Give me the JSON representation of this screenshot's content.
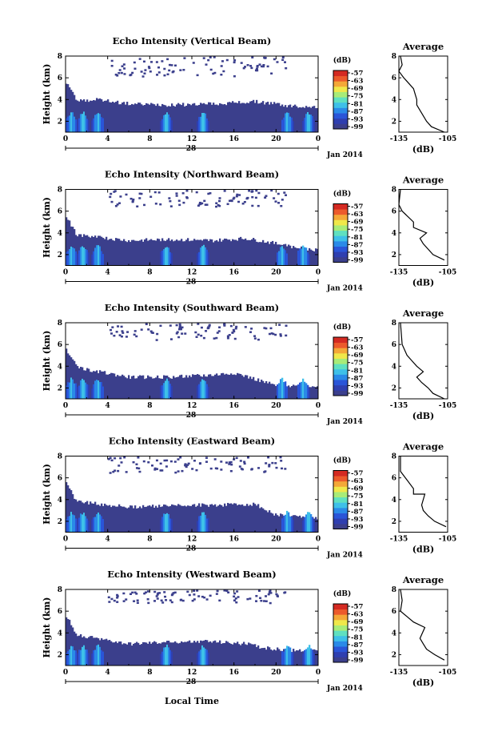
{
  "figure": {
    "common_xlabel": "Local Time",
    "date_label": "Jan 2014",
    "day_label": "28",
    "xticks": [
      "0",
      "4",
      "8",
      "12",
      "16",
      "20",
      "0"
    ],
    "yticks": [
      "2",
      "4",
      "6",
      "8"
    ],
    "ylabel": "Height (km)",
    "cbar_unit": "(dB)",
    "cbar_ticks": [
      "-57",
      "-63",
      "-69",
      "-75",
      "-81",
      "-87",
      "-93",
      "-99"
    ],
    "avg_title": "Average",
    "avg_xticks": [
      "-135",
      "-105"
    ],
    "avg_xlabel": "(dB)",
    "colors": {
      "colormap": [
        "#3b3f8c",
        "#2f3fb0",
        "#2a55d8",
        "#2a8ae8",
        "#3ec0e8",
        "#5fe0c0",
        "#a8ec78",
        "#f0e84a",
        "#f4a838",
        "#ec5a2c",
        "#d42a22"
      ],
      "no_data": "#ffffff"
    }
  },
  "panels": [
    {
      "title": "Echo Intensity (Vertical Beam)"
    },
    {
      "title": "Echo Intensity (Northward Beam)"
    },
    {
      "title": "Echo Intensity (Southward Beam)"
    },
    {
      "title": "Echo Intensity (Eastward Beam)"
    },
    {
      "title": "Echo Intensity (Westward Beam)"
    }
  ],
  "chart_data": [
    {
      "type": "heatmap",
      "beam": "Vertical",
      "title": "Echo Intensity (Vertical Beam)",
      "xlabel": "Local Time",
      "ylabel": "Height (km)",
      "x_range_hours": [
        0,
        24
      ],
      "ylim_km": [
        1,
        8
      ],
      "color_range_dB": [
        -99,
        -57
      ],
      "xticks": [
        "0",
        "4",
        "8",
        "12",
        "16",
        "20",
        "0"
      ],
      "echo_top_km": [
        [
          0,
          5.6
        ],
        [
          1,
          3.9
        ],
        [
          3,
          4.0
        ],
        [
          6,
          3.6
        ],
        [
          10,
          3.5
        ],
        [
          14,
          3.6
        ],
        [
          18,
          3.8
        ],
        [
          20,
          3.6
        ],
        [
          21,
          3.4
        ],
        [
          24,
          3.3
        ]
      ],
      "sparse_upper_cloud_km": [
        6.0,
        8.0
      ],
      "intense_streaks_hours": [
        0.5,
        1.6,
        3.0,
        9.5,
        13.0,
        21.0,
        23.0
      ],
      "average_profile": {
        "x_dB": [
          -107,
          -115,
          -118,
          -120,
          -124,
          -124,
          -126,
          -132,
          -135,
          -133,
          -134
        ],
        "height_km": [
          1.0,
          1.5,
          2.0,
          2.5,
          3.5,
          4.0,
          5.0,
          6.0,
          6.6,
          7.2,
          8.0
        ],
        "xlim": [
          -135,
          -105
        ],
        "ylim": [
          1,
          8
        ]
      }
    },
    {
      "type": "heatmap",
      "beam": "Northward",
      "title": "Echo Intensity (Northward Beam)",
      "xlabel": "Local Time",
      "ylabel": "Height (km)",
      "x_range_hours": [
        0,
        24
      ],
      "ylim_km": [
        1,
        8
      ],
      "color_range_dB": [
        -99,
        -57
      ],
      "xticks": [
        "0",
        "4",
        "8",
        "12",
        "16",
        "20",
        "0"
      ],
      "echo_top_km": [
        [
          0,
          5.5
        ],
        [
          1,
          3.8
        ],
        [
          3,
          3.6
        ],
        [
          6,
          3.3
        ],
        [
          10,
          3.4
        ],
        [
          14,
          3.3
        ],
        [
          17,
          3.5
        ],
        [
          19,
          3.2
        ],
        [
          21,
          2.8
        ],
        [
          24,
          2.4
        ]
      ],
      "sparse_upper_cloud_km": [
        6.5,
        8.0
      ],
      "intense_streaks_hours": [
        0.5,
        1.6,
        3.0,
        9.5,
        13.0,
        20.5,
        22.5
      ],
      "average_profile": {
        "x_dB": [
          -107,
          -114,
          -117,
          -120,
          -122,
          -118,
          -126,
          -126,
          -133,
          -135,
          -134
        ],
        "height_km": [
          1.5,
          2.0,
          2.5,
          3.0,
          3.5,
          4.0,
          4.5,
          5.0,
          6.0,
          6.6,
          8.0
        ],
        "xlim": [
          -135,
          -105
        ],
        "ylim": [
          1,
          8
        ]
      }
    },
    {
      "type": "heatmap",
      "beam": "Southward",
      "title": "Echo Intensity (Southward Beam)",
      "xlabel": "Local Time",
      "ylabel": "Height (km)",
      "x_range_hours": [
        0,
        24
      ],
      "ylim_km": [
        1,
        8
      ],
      "color_range_dB": [
        -99,
        -57
      ],
      "xticks": [
        "0",
        "4",
        "8",
        "12",
        "16",
        "20",
        "0"
      ],
      "echo_top_km": [
        [
          0,
          5.6
        ],
        [
          1,
          3.9
        ],
        [
          3,
          3.5
        ],
        [
          6,
          3.0
        ],
        [
          10,
          3.0
        ],
        [
          14,
          3.2
        ],
        [
          16,
          3.4
        ],
        [
          18,
          2.8
        ],
        [
          20,
          2.2
        ],
        [
          24,
          2.2
        ]
      ],
      "sparse_upper_cloud_km": [
        6.5,
        8.0
      ],
      "intense_streaks_hours": [
        0.5,
        1.6,
        3.0,
        9.5,
        13.0,
        20.5,
        22.5
      ],
      "average_profile": {
        "x_dB": [
          -107,
          -114,
          -117,
          -121,
          -124,
          -120,
          -124,
          -127,
          -130,
          -133,
          -134
        ],
        "height_km": [
          1.0,
          1.5,
          2.0,
          2.5,
          3.0,
          3.5,
          4.0,
          4.5,
          5.0,
          6.0,
          8.0
        ],
        "xlim": [
          -135,
          -105
        ],
        "ylim": [
          1,
          8
        ]
      }
    },
    {
      "type": "heatmap",
      "beam": "Eastward",
      "title": "Echo Intensity (Eastward Beam)",
      "xlabel": "Local Time",
      "ylabel": "Height (km)",
      "x_range_hours": [
        0,
        24
      ],
      "ylim_km": [
        1,
        8
      ],
      "color_range_dB": [
        -99,
        -57
      ],
      "xticks": [
        "0",
        "4",
        "8",
        "12",
        "16",
        "20",
        "0"
      ],
      "echo_top_km": [
        [
          0,
          5.5
        ],
        [
          1,
          3.8
        ],
        [
          3,
          3.6
        ],
        [
          6,
          3.3
        ],
        [
          10,
          3.5
        ],
        [
          14,
          3.5
        ],
        [
          18,
          3.6
        ],
        [
          19,
          3.0
        ],
        [
          20,
          2.6
        ],
        [
          24,
          2.2
        ]
      ],
      "sparse_upper_cloud_km": [
        6.5,
        8.0
      ],
      "intense_streaks_hours": [
        0.5,
        1.6,
        3.0,
        9.5,
        13.0,
        21.0,
        23.0
      ],
      "average_profile": {
        "x_dB": [
          -106,
          -113,
          -117,
          -120,
          -121,
          -119,
          -126,
          -126,
          -131,
          -134,
          -134
        ],
        "height_km": [
          1.5,
          2.0,
          2.5,
          3.0,
          3.5,
          4.5,
          4.5,
          5.0,
          6.0,
          6.6,
          8.0
        ],
        "xlim": [
          -135,
          -105
        ],
        "ylim": [
          1,
          8
        ]
      }
    },
    {
      "type": "heatmap",
      "beam": "Westward",
      "title": "Echo Intensity (Westward Beam)",
      "xlabel": "Local Time",
      "ylabel": "Height (km)",
      "x_range_hours": [
        0,
        24
      ],
      "ylim_km": [
        1,
        8
      ],
      "color_range_dB": [
        -99,
        -57
      ],
      "xticks": [
        "0",
        "4",
        "8",
        "12",
        "16",
        "20",
        "0"
      ],
      "echo_top_km": [
        [
          0,
          5.6
        ],
        [
          1,
          3.8
        ],
        [
          3,
          3.5
        ],
        [
          6,
          3.0
        ],
        [
          10,
          3.2
        ],
        [
          14,
          3.2
        ],
        [
          17,
          3.0
        ],
        [
          19,
          2.6
        ],
        [
          21,
          2.4
        ],
        [
          24,
          2.4
        ]
      ],
      "sparse_upper_cloud_km": [
        6.8,
        8.0
      ],
      "intense_streaks_hours": [
        0.5,
        1.6,
        3.0,
        9.5,
        13.0,
        21.0,
        23.0
      ],
      "average_profile": {
        "x_dB": [
          -107,
          -113,
          -118,
          -120,
          -122,
          -119,
          -126,
          -130,
          -134,
          -133,
          -134
        ],
        "height_km": [
          1.5,
          2.0,
          2.5,
          3.0,
          3.5,
          4.5,
          5.0,
          5.5,
          6.0,
          7.0,
          8.0
        ],
        "xlim": [
          -135,
          -105
        ],
        "ylim": [
          1,
          8
        ]
      }
    }
  ]
}
